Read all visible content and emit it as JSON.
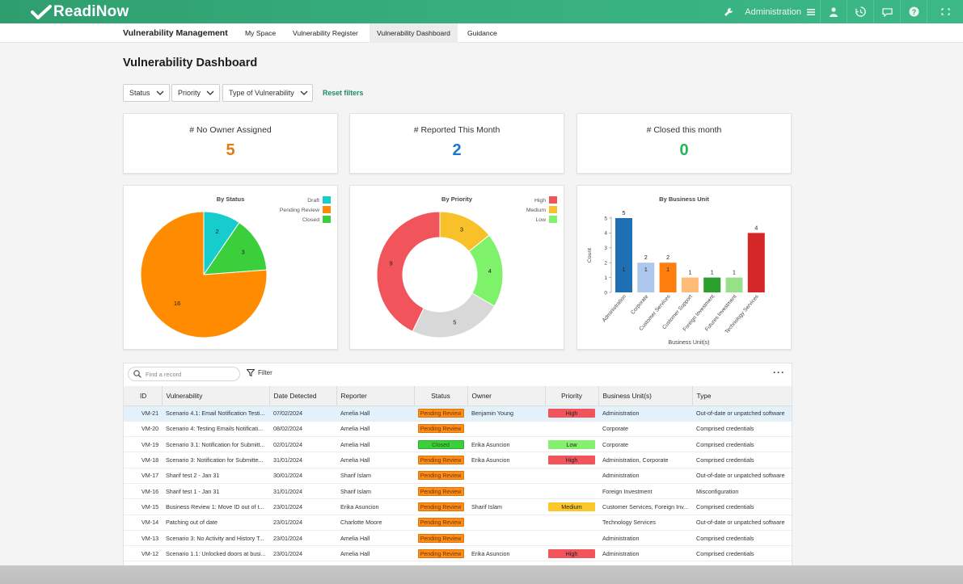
{
  "app": {
    "logo_text": "ReadiNow"
  },
  "topbar": {
    "admin_label": "Administration"
  },
  "nav": {
    "app_name": "Vulnerability Management",
    "tabs": [
      {
        "label": "My Space"
      },
      {
        "label": "Vulnerability Register"
      },
      {
        "label": "Vulnerability Dashboard"
      },
      {
        "label": "Guidance"
      }
    ]
  },
  "page": {
    "title": "Vulnerability Dashboard"
  },
  "filters": {
    "status": "Status",
    "priority": "Priority",
    "type": "Type of Vulnerability",
    "reset": "Reset filters"
  },
  "kpis": [
    {
      "label": "# No Owner Assigned",
      "value": "5",
      "color": "#e07b10"
    },
    {
      "label": "# Reported This Month",
      "value": "2",
      "color": "#1e78c8"
    },
    {
      "label": "# Closed this month",
      "value": "0",
      "color": "#27b35a"
    }
  ],
  "chart_data": [
    {
      "type": "pie",
      "title": "By Status",
      "legend_position": "top-right",
      "categories": [
        "Draft",
        "Pending Review",
        "Closed"
      ],
      "values": [
        2,
        16,
        3
      ],
      "colors": [
        "#16cccc",
        "#ff8c00",
        "#3ccf3c"
      ]
    },
    {
      "type": "pie",
      "title": "By Priority",
      "donut": true,
      "legend_position": "top-right",
      "categories": [
        "High",
        "Medium",
        "Low"
      ],
      "values": [
        9,
        3,
        4
      ],
      "extra_slice": {
        "label": "",
        "value": 5,
        "color": "#d8d8d8"
      },
      "colors": [
        "#f2545b",
        "#f8c12a",
        "#7ef26a"
      ]
    },
    {
      "type": "bar",
      "title": "By Business Unit",
      "xlabel": "Business Unit(s)",
      "ylabel": "Count",
      "ylim": [
        0,
        5
      ],
      "yticks": [
        0,
        1,
        2,
        3,
        4,
        5
      ],
      "grid": false,
      "categories": [
        "Administration",
        "Corporate",
        "Customer Services",
        "Customer Support",
        "Foreign Investment",
        "Futures Investment",
        "Technology Services"
      ],
      "values": [
        5,
        2,
        2,
        1,
        1,
        1,
        4
      ],
      "inner_labels": [
        "1",
        "1",
        "1",
        "",
        "",
        "",
        ""
      ],
      "colors": [
        "#1f6fb5",
        "#adc8ec",
        "#ff7f0e",
        "#ffbb78",
        "#2ca02c",
        "#98df8a",
        "#d62728"
      ]
    }
  ],
  "table": {
    "search_placeholder": "Find a record",
    "filter_label": "Filter",
    "more_label": "···",
    "columns": [
      "ID",
      "Vulnerability",
      "Date Detected",
      "Reporter",
      "Status",
      "Owner",
      "Priority",
      "Business Unit(s)",
      "Type"
    ],
    "rows": [
      {
        "id": "VM-21",
        "vuln": "Scenario 4.1: Email Notification Testi...",
        "date": "07/02/2024",
        "reporter": "Amelia Hall",
        "status": "Pending Review",
        "owner": "Benjamin Young",
        "priority": "High",
        "bu": "Administration",
        "type": "Out-of-date or unpatched software"
      },
      {
        "id": "VM-20",
        "vuln": "Scenario 4: Testing Emails Notificati...",
        "date": "08/02/2024",
        "reporter": "Amelia Hall",
        "status": "Pending Review",
        "owner": "",
        "priority": "",
        "bu": "Corporate",
        "type": "Comprised credentials"
      },
      {
        "id": "VM-19",
        "vuln": "Scenario 3.1: Notification for Submitt...",
        "date": "02/01/2024",
        "reporter": "Amelia Hall",
        "status": "Closed",
        "owner": "Erika Asuncion",
        "priority": "Low",
        "bu": "Corporate",
        "type": "Comprised credentials"
      },
      {
        "id": "VM-18",
        "vuln": "Scenario 3: Notification for Submitte...",
        "date": "31/01/2024",
        "reporter": "Amelia Hall",
        "status": "Pending Review",
        "owner": "Erika Asuncion",
        "priority": "High",
        "bu": "Administration, Corporate",
        "type": "Comprised credentials"
      },
      {
        "id": "VM-17",
        "vuln": "Sharif test 2 - Jan 31",
        "date": "30/01/2024",
        "reporter": "Sharif Islam",
        "status": "Pending Review",
        "owner": "",
        "priority": "",
        "bu": "Administration",
        "type": "Out-of-date or unpatched software"
      },
      {
        "id": "VM-16",
        "vuln": "Sharif test 1 - Jan 31",
        "date": "31/01/2024",
        "reporter": "Sharif Islam",
        "status": "Pending Review",
        "owner": "",
        "priority": "",
        "bu": "Foreign Investment",
        "type": "Misconfiguration"
      },
      {
        "id": "VM-15",
        "vuln": "Business Review 1: Move ID out of t...",
        "date": "23/01/2024",
        "reporter": "Erika Asuncion",
        "status": "Pending Review",
        "owner": "Sharif Islam",
        "priority": "Medium",
        "bu": "Customer Services, Foreign Inv...",
        "type": "Comprised credentials"
      },
      {
        "id": "VM-14",
        "vuln": "Patching out of date",
        "date": "23/01/2024",
        "reporter": "Charlotte Moore",
        "status": "Pending Review",
        "owner": "",
        "priority": "",
        "bu": "Technology Services",
        "type": "Out-of-date or unpatched software"
      },
      {
        "id": "VM-13",
        "vuln": "Scenario 3: No Activity and History T...",
        "date": "23/01/2024",
        "reporter": "Amelia Hall",
        "status": "Pending Review",
        "owner": "",
        "priority": "",
        "bu": "Administration",
        "type": "Comprised credentials"
      },
      {
        "id": "VM-12",
        "vuln": "Scenario 1.1: Unlocked doors at busi...",
        "date": "23/01/2024",
        "reporter": "Amelia Hall",
        "status": "Pending Review",
        "owner": "Erika Asuncion",
        "priority": "High",
        "bu": "Administration",
        "type": "Comprised credentials"
      }
    ]
  },
  "colors": {
    "status": {
      "Pending Review": "#ff8c1a",
      "Closed": "#3ccf3c"
    },
    "priority": {
      "High": "#f2545b",
      "Medium": "#fac82a",
      "Low": "#84f06e"
    }
  }
}
